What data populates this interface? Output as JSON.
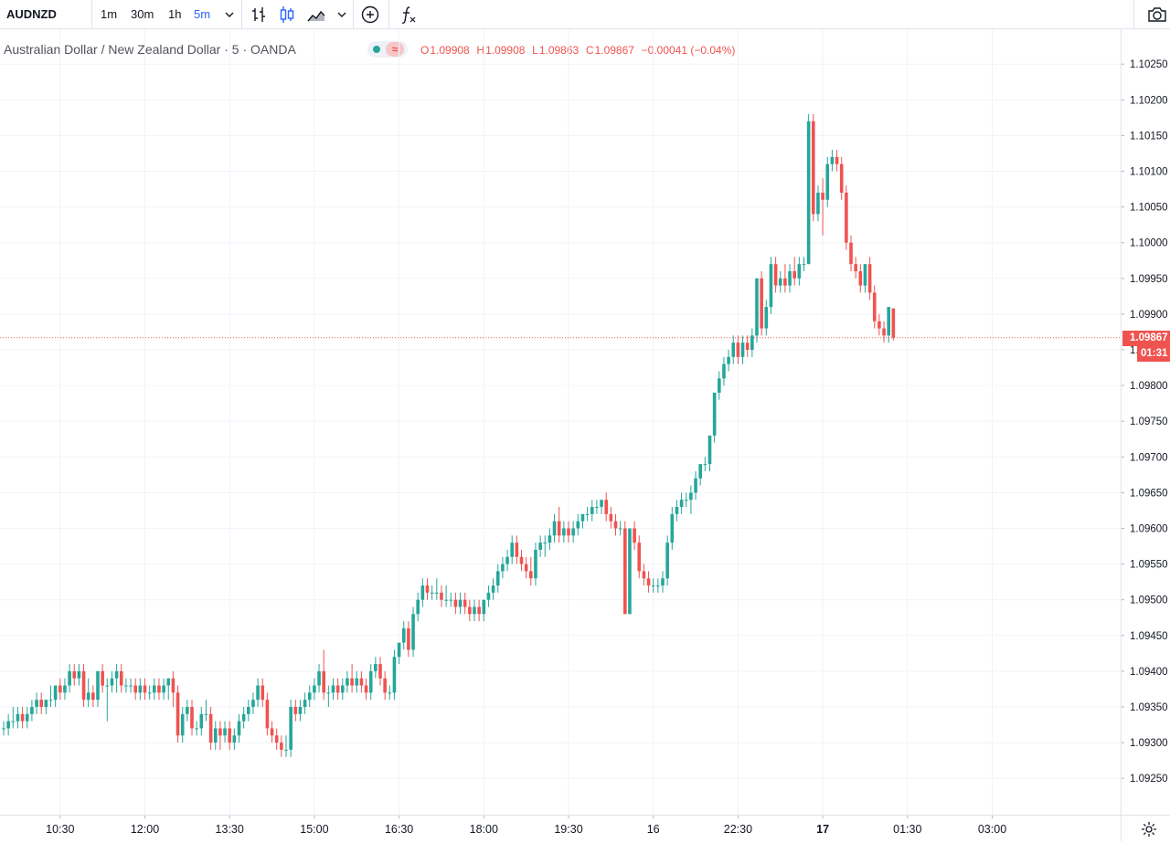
{
  "toolbar": {
    "symbol": "AUDNZD",
    "intervals": [
      "1m",
      "30m",
      "1h",
      "5m"
    ],
    "active_interval": "5m",
    "icons": [
      "chevron-down-icon",
      "bar-chart-icon",
      "candlestick-icon",
      "area-chart-icon",
      "chevron-down-icon",
      "add-indicator-icon",
      "function-icon",
      "camera-icon"
    ]
  },
  "legend": {
    "title": "Australian Dollar / New Zealand Dollar · 5 · OANDA",
    "status_wave": "≈",
    "open_key": "O",
    "open": "1.09908",
    "high_key": "H",
    "high": "1.09908",
    "low_key": "L",
    "low": "1.09863",
    "close_key": "C",
    "close": "1.09867",
    "change": "−0.00041 (−0.04%)"
  },
  "price_tag": {
    "last_price": "1.09867",
    "countdown": "01:31"
  },
  "colors": {
    "up": "#26a69a",
    "down": "#ef5350",
    "grid": "#f0f3fa",
    "axis_text": "#131722",
    "last_line": "#ef5350",
    "active_interval": "#2962ff"
  },
  "chart_data": {
    "type": "candlestick",
    "symbol": "AUDNZD",
    "interval": "5",
    "source": "OANDA",
    "ylim": [
      1.0921,
      1.1029
    ],
    "price_ticks": [
      "1.10250",
      "1.10200",
      "1.10150",
      "1.10100",
      "1.10050",
      "1.10000",
      "1.09950",
      "1.09900",
      "1.09850",
      "1.09800",
      "1.09750",
      "1.09700",
      "1.09650",
      "1.09600",
      "1.09550",
      "1.09500",
      "1.09450",
      "1.09400",
      "1.09350",
      "1.09300",
      "1.09250"
    ],
    "time_ticks": [
      {
        "label": "10:30",
        "bar": 12,
        "bold": false
      },
      {
        "label": "12:00",
        "bar": 30,
        "bold": false
      },
      {
        "label": "13:30",
        "bar": 48,
        "bold": false
      },
      {
        "label": "15:00",
        "bar": 66,
        "bold": false
      },
      {
        "label": "16:30",
        "bar": 84,
        "bold": false
      },
      {
        "label": "18:00",
        "bar": 102,
        "bold": false
      },
      {
        "label": "19:30",
        "bar": 120,
        "bold": false
      },
      {
        "label": "16",
        "bar": 138,
        "bold": false
      },
      {
        "label": "22:30",
        "bar": 156,
        "bold": false
      },
      {
        "label": "17",
        "bar": 174,
        "bold": true
      },
      {
        "label": "01:30",
        "bar": 192,
        "bold": false
      },
      {
        "label": "03:00",
        "bar": 210,
        "bold": false
      }
    ],
    "last_price": 1.09867,
    "ohlc": [
      [
        1.0932,
        1.0933,
        1.0931,
        1.0932
      ],
      [
        1.0932,
        1.0934,
        1.0931,
        1.0933
      ],
      [
        1.0933,
        1.0935,
        1.0932,
        1.0933
      ],
      [
        1.0933,
        1.0935,
        1.0932,
        1.0934
      ],
      [
        1.0934,
        1.0935,
        1.0932,
        1.0933
      ],
      [
        1.0933,
        1.0935,
        1.0932,
        1.0934
      ],
      [
        1.0934,
        1.0936,
        1.0933,
        1.0935
      ],
      [
        1.0935,
        1.0937,
        1.0934,
        1.0936
      ],
      [
        1.0936,
        1.0937,
        1.0934,
        1.0935
      ],
      [
        1.0935,
        1.0936,
        1.0934,
        1.0936
      ],
      [
        1.0936,
        1.0938,
        1.0935,
        1.0936
      ],
      [
        1.0936,
        1.0938,
        1.0935,
        1.0938
      ],
      [
        1.0938,
        1.0939,
        1.0936,
        1.0937
      ],
      [
        1.0937,
        1.0939,
        1.0936,
        1.0938
      ],
      [
        1.0938,
        1.0941,
        1.0937,
        1.094
      ],
      [
        1.094,
        1.0941,
        1.0938,
        1.0939
      ],
      [
        1.0939,
        1.0941,
        1.0938,
        1.094
      ],
      [
        1.094,
        1.0941,
        1.0935,
        1.0936
      ],
      [
        1.0936,
        1.0939,
        1.0935,
        1.0937
      ],
      [
        1.0937,
        1.0938,
        1.0935,
        1.0936
      ],
      [
        1.0936,
        1.094,
        1.0935,
        1.094
      ],
      [
        1.094,
        1.0941,
        1.0937,
        1.0938
      ],
      [
        1.0938,
        1.0939,
        1.0933,
        1.0938
      ],
      [
        1.0938,
        1.094,
        1.0937,
        1.0939
      ],
      [
        1.0939,
        1.0941,
        1.0937,
        1.094
      ],
      [
        1.094,
        1.0941,
        1.0937,
        1.0938
      ],
      [
        1.0938,
        1.0939,
        1.0937,
        1.0938
      ],
      [
        1.0938,
        1.0939,
        1.0937,
        1.0938
      ],
      [
        1.0938,
        1.0939,
        1.0936,
        1.0937
      ],
      [
        1.0937,
        1.0939,
        1.0936,
        1.0938
      ],
      [
        1.0938,
        1.0939,
        1.0936,
        1.0937
      ],
      [
        1.0937,
        1.0938,
        1.0936,
        1.0937
      ],
      [
        1.0937,
        1.0939,
        1.0936,
        1.0938
      ],
      [
        1.0938,
        1.0939,
        1.0936,
        1.0937
      ],
      [
        1.0937,
        1.0939,
        1.0936,
        1.0938
      ],
      [
        1.0938,
        1.0939,
        1.0936,
        1.0939
      ],
      [
        1.0939,
        1.094,
        1.0935,
        1.0937
      ],
      [
        1.0937,
        1.0938,
        1.093,
        1.0931
      ],
      [
        1.0931,
        1.0935,
        1.093,
        1.0934
      ],
      [
        1.0934,
        1.0936,
        1.0933,
        1.0935
      ],
      [
        1.0935,
        1.0936,
        1.0931,
        1.0932
      ],
      [
        1.0932,
        1.0933,
        1.0931,
        1.0932
      ],
      [
        1.0932,
        1.0935,
        1.0931,
        1.0934
      ],
      [
        1.0934,
        1.0936,
        1.0933,
        1.0934
      ],
      [
        1.0934,
        1.0935,
        1.0929,
        1.093
      ],
      [
        1.093,
        1.0933,
        1.0929,
        1.0932
      ],
      [
        1.0932,
        1.0933,
        1.0929,
        1.0931
      ],
      [
        1.0931,
        1.0933,
        1.093,
        1.0932
      ],
      [
        1.0932,
        1.0933,
        1.0929,
        1.093
      ],
      [
        1.093,
        1.0932,
        1.0929,
        1.0931
      ],
      [
        1.0931,
        1.0934,
        1.093,
        1.0933
      ],
      [
        1.0933,
        1.0935,
        1.0932,
        1.0934
      ],
      [
        1.0934,
        1.0936,
        1.0933,
        1.0935
      ],
      [
        1.0935,
        1.0937,
        1.0934,
        1.0936
      ],
      [
        1.0936,
        1.0939,
        1.0935,
        1.0938
      ],
      [
        1.0938,
        1.0939,
        1.0935,
        1.0936
      ],
      [
        1.0936,
        1.0937,
        1.0931,
        1.0932
      ],
      [
        1.0932,
        1.0933,
        1.093,
        1.0931
      ],
      [
        1.0931,
        1.0932,
        1.0929,
        1.093
      ],
      [
        1.093,
        1.0931,
        1.0928,
        1.0929
      ],
      [
        1.0929,
        1.0931,
        1.0928,
        1.0929
      ],
      [
        1.0929,
        1.0936,
        1.0928,
        1.0935
      ],
      [
        1.0935,
        1.0936,
        1.0933,
        1.0934
      ],
      [
        1.0934,
        1.0936,
        1.0933,
        1.0935
      ],
      [
        1.0935,
        1.0937,
        1.0934,
        1.0936
      ],
      [
        1.0936,
        1.0938,
        1.0935,
        1.0937
      ],
      [
        1.0937,
        1.0939,
        1.0936,
        1.0938
      ],
      [
        1.0938,
        1.0941,
        1.0937,
        1.094
      ],
      [
        1.094,
        1.0943,
        1.0936,
        1.0937
      ],
      [
        1.0937,
        1.0938,
        1.0935,
        1.0937
      ],
      [
        1.0937,
        1.0939,
        1.0936,
        1.0938
      ],
      [
        1.0938,
        1.0939,
        1.0936,
        1.0937
      ],
      [
        1.0937,
        1.0939,
        1.0936,
        1.0938
      ],
      [
        1.0938,
        1.094,
        1.0937,
        1.0939
      ],
      [
        1.0939,
        1.0941,
        1.0937,
        1.0938
      ],
      [
        1.0938,
        1.094,
        1.0937,
        1.0939
      ],
      [
        1.0939,
        1.094,
        1.0937,
        1.0938
      ],
      [
        1.0938,
        1.0939,
        1.0936,
        1.0937
      ],
      [
        1.0937,
        1.0941,
        1.0936,
        1.094
      ],
      [
        1.094,
        1.0942,
        1.0939,
        1.0941
      ],
      [
        1.0941,
        1.0942,
        1.0938,
        1.0939
      ],
      [
        1.0939,
        1.094,
        1.0936,
        1.0937
      ],
      [
        1.0937,
        1.0938,
        1.0936,
        1.0937
      ],
      [
        1.0937,
        1.0943,
        1.0936,
        1.0942
      ],
      [
        1.0942,
        1.0944,
        1.0941,
        1.0944
      ],
      [
        1.0944,
        1.0947,
        1.0943,
        1.0946
      ],
      [
        1.0946,
        1.0947,
        1.0942,
        1.0943
      ],
      [
        1.0943,
        1.0949,
        1.0942,
        1.0948
      ],
      [
        1.0948,
        1.0951,
        1.0947,
        1.095
      ],
      [
        1.095,
        1.0953,
        1.0949,
        1.0952
      ],
      [
        1.0952,
        1.0953,
        1.095,
        1.0951
      ],
      [
        1.0951,
        1.0952,
        1.095,
        1.0951
      ],
      [
        1.0951,
        1.0953,
        1.095,
        1.0951
      ],
      [
        1.0951,
        1.0952,
        1.0949,
        1.095
      ],
      [
        1.095,
        1.0952,
        1.0949,
        1.095
      ],
      [
        1.095,
        1.0951,
        1.0949,
        1.095
      ],
      [
        1.095,
        1.0951,
        1.0948,
        1.0949
      ],
      [
        1.0949,
        1.0951,
        1.0948,
        1.095
      ],
      [
        1.095,
        1.0951,
        1.0948,
        1.0949
      ],
      [
        1.0949,
        1.095,
        1.0947,
        1.0948
      ],
      [
        1.0948,
        1.095,
        1.0947,
        1.0949
      ],
      [
        1.0949,
        1.095,
        1.0947,
        1.0948
      ],
      [
        1.0948,
        1.095,
        1.0947,
        1.095
      ],
      [
        1.095,
        1.0952,
        1.0949,
        1.0951
      ],
      [
        1.0951,
        1.0953,
        1.095,
        1.0952
      ],
      [
        1.0952,
        1.0955,
        1.0951,
        1.0954
      ],
      [
        1.0954,
        1.0956,
        1.0953,
        1.0955
      ],
      [
        1.0955,
        1.0957,
        1.0954,
        1.0956
      ],
      [
        1.0956,
        1.0959,
        1.0955,
        1.0958
      ],
      [
        1.0958,
        1.0959,
        1.0955,
        1.0956
      ],
      [
        1.0956,
        1.0957,
        1.0954,
        1.0955
      ],
      [
        1.0955,
        1.0956,
        1.0953,
        1.0954
      ],
      [
        1.0954,
        1.0956,
        1.0952,
        1.0953
      ],
      [
        1.0953,
        1.0958,
        1.0952,
        1.0957
      ],
      [
        1.0957,
        1.0959,
        1.0956,
        1.0958
      ],
      [
        1.0958,
        1.0959,
        1.0956,
        1.0958
      ],
      [
        1.0958,
        1.096,
        1.0957,
        1.0959
      ],
      [
        1.0959,
        1.0962,
        1.0958,
        1.0961
      ],
      [
        1.0961,
        1.0963,
        1.0958,
        1.0959
      ],
      [
        1.0959,
        1.0961,
        1.0958,
        1.096
      ],
      [
        1.096,
        1.0961,
        1.0958,
        1.0959
      ],
      [
        1.0959,
        1.0961,
        1.0958,
        1.096
      ],
      [
        1.096,
        1.0962,
        1.0959,
        1.0961
      ],
      [
        1.0961,
        1.0962,
        1.096,
        1.0962
      ],
      [
        1.0962,
        1.0963,
        1.0961,
        1.0962
      ],
      [
        1.0962,
        1.0964,
        1.0961,
        1.0963
      ],
      [
        1.0963,
        1.0964,
        1.0962,
        1.0963
      ],
      [
        1.0963,
        1.0964,
        1.0962,
        1.0964
      ],
      [
        1.0964,
        1.0965,
        1.0961,
        1.0962
      ],
      [
        1.0962,
        1.0963,
        1.096,
        1.0961
      ],
      [
        1.0961,
        1.0962,
        1.0959,
        1.096
      ],
      [
        1.096,
        1.0961,
        1.0959,
        1.096
      ],
      [
        1.096,
        1.0961,
        1.0948,
        1.0948
      ],
      [
        1.0948,
        1.096,
        1.0948,
        1.096
      ],
      [
        1.096,
        1.0961,
        1.0957,
        1.0958
      ],
      [
        1.0958,
        1.0959,
        1.0953,
        1.0954
      ],
      [
        1.0954,
        1.0955,
        1.0952,
        1.0953
      ],
      [
        1.0953,
        1.0954,
        1.0951,
        1.0952
      ],
      [
        1.0952,
        1.0953,
        1.0951,
        1.0952
      ],
      [
        1.0952,
        1.0953,
        1.0951,
        1.0952
      ],
      [
        1.0952,
        1.0954,
        1.0951,
        1.0953
      ],
      [
        1.0953,
        1.0959,
        1.0952,
        1.0958
      ],
      [
        1.0958,
        1.0963,
        1.0957,
        1.0962
      ],
      [
        1.0962,
        1.0964,
        1.0961,
        1.0963
      ],
      [
        1.0963,
        1.0965,
        1.0962,
        1.0964
      ],
      [
        1.0964,
        1.0965,
        1.0963,
        1.0964
      ],
      [
        1.0964,
        1.0966,
        1.0962,
        1.0965
      ],
      [
        1.0965,
        1.0968,
        1.0964,
        1.0967
      ],
      [
        1.0967,
        1.0969,
        1.0966,
        1.0969
      ],
      [
        1.0969,
        1.097,
        1.0968,
        1.0969
      ],
      [
        1.0969,
        1.0973,
        1.0968,
        1.0973
      ],
      [
        1.0973,
        1.0979,
        1.0972,
        1.0979
      ],
      [
        1.0979,
        1.0982,
        1.0978,
        1.0981
      ],
      [
        1.0981,
        1.0984,
        1.098,
        1.0983
      ],
      [
        1.0983,
        1.0985,
        1.0982,
        1.0984
      ],
      [
        1.0984,
        1.0987,
        1.0983,
        1.0986
      ],
      [
        1.0986,
        1.0987,
        1.0983,
        1.0984
      ],
      [
        1.0984,
        1.0987,
        1.0983,
        1.0986
      ],
      [
        1.0986,
        1.0987,
        1.0984,
        1.0985
      ],
      [
        1.0985,
        1.0988,
        1.0984,
        1.0987
      ],
      [
        1.0987,
        1.0995,
        1.0986,
        1.0995
      ],
      [
        1.0995,
        1.0996,
        1.0987,
        1.0988
      ],
      [
        1.0988,
        1.0992,
        1.0987,
        1.0991
      ],
      [
        1.0991,
        1.0998,
        1.099,
        1.0997
      ],
      [
        1.0997,
        1.0998,
        1.0993,
        1.0994
      ],
      [
        1.0994,
        1.0996,
        1.0993,
        1.0995
      ],
      [
        1.0995,
        1.0997,
        1.0993,
        1.0994
      ],
      [
        1.0994,
        1.0997,
        1.0993,
        1.0996
      ],
      [
        1.0996,
        1.0998,
        1.0994,
        1.0995
      ],
      [
        1.0995,
        1.0998,
        1.0994,
        1.0997
      ],
      [
        1.0997,
        1.0998,
        1.0996,
        1.0997
      ],
      [
        1.0997,
        1.1018,
        1.0997,
        1.1017
      ],
      [
        1.1017,
        1.1018,
        1.1003,
        1.1004
      ],
      [
        1.1004,
        1.1008,
        1.1003,
        1.1007
      ],
      [
        1.1007,
        1.1009,
        1.1001,
        1.1006
      ],
      [
        1.1006,
        1.1012,
        1.1005,
        1.1011
      ],
      [
        1.1011,
        1.1013,
        1.101,
        1.1012
      ],
      [
        1.1012,
        1.1013,
        1.101,
        1.1011
      ],
      [
        1.1011,
        1.1012,
        1.1006,
        1.1007
      ],
      [
        1.1007,
        1.1008,
        1.0999,
        1.1
      ],
      [
        1.1,
        1.1001,
        1.0996,
        1.0997
      ],
      [
        1.0997,
        1.0998,
        1.0995,
        1.0996
      ],
      [
        1.0996,
        1.0997,
        1.0993,
        1.0994
      ],
      [
        1.0994,
        1.0997,
        1.0993,
        1.0997
      ],
      [
        1.0997,
        1.0998,
        1.0992,
        1.0993
      ],
      [
        1.0993,
        1.0994,
        1.0988,
        1.0989
      ],
      [
        1.0989,
        1.099,
        1.0987,
        1.0988
      ],
      [
        1.0988,
        1.0989,
        1.0986,
        1.0987
      ],
      [
        1.0987,
        1.0991,
        1.0986,
        1.0991
      ],
      [
        1.09908,
        1.09908,
        1.09863,
        1.09867
      ]
    ]
  }
}
